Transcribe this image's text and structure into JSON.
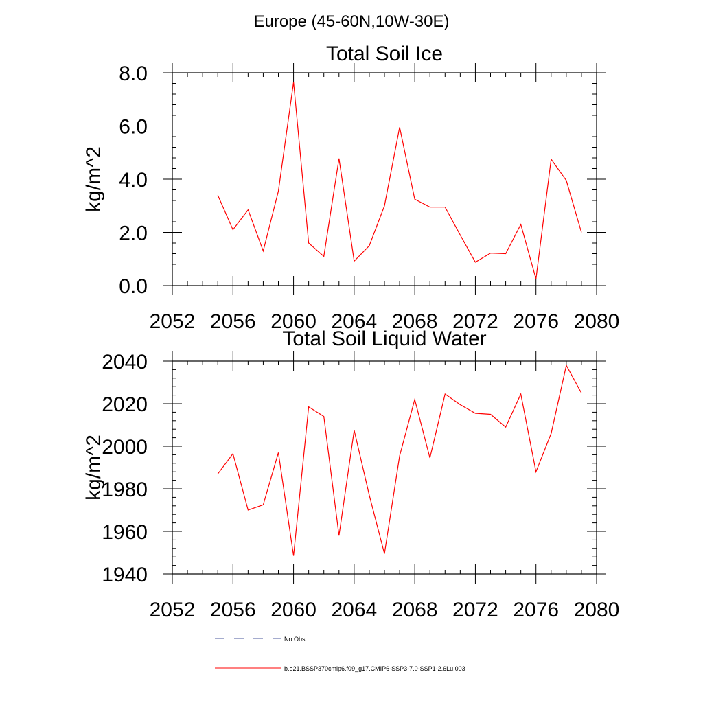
{
  "figure": {
    "suptitle": "Europe (45-60N,10W-30E)"
  },
  "chart_data": [
    {
      "type": "line",
      "title": "Total Soil Ice",
      "xlabel": "",
      "ylabel": "kg/m^2",
      "xlim": [
        2052,
        2080
      ],
      "ylim": [
        0,
        8
      ],
      "xticks": [
        "2052",
        "2056",
        "2060",
        "2064",
        "2068",
        "2072",
        "2076",
        "2080"
      ],
      "yticks": [
        "0.0",
        "2.0",
        "4.0",
        "6.0",
        "8.0"
      ],
      "line_color": "#ff0000",
      "series": [
        {
          "x": [
            2055,
            2056,
            2057,
            2058,
            2059,
            2060,
            2061,
            2062,
            2063,
            2064,
            2065,
            2066,
            2067,
            2068,
            2069,
            2070,
            2071,
            2072,
            2073,
            2074,
            2075,
            2076,
            2077,
            2078,
            2079
          ],
          "values": [
            3.4,
            2.1,
            2.85,
            1.3,
            3.55,
            7.65,
            1.6,
            1.1,
            4.78,
            0.92,
            1.5,
            3.0,
            5.95,
            3.25,
            2.95,
            2.95,
            1.9,
            0.88,
            1.22,
            1.2,
            2.3,
            0.25,
            4.75,
            3.95,
            2.0
          ]
        }
      ]
    },
    {
      "type": "line",
      "title": "Total Soil Liquid Water",
      "xlabel": "",
      "ylabel": "kg/m^2",
      "xlim": [
        2052,
        2080
      ],
      "ylim": [
        1940,
        2040
      ],
      "xticks": [
        "2052",
        "2056",
        "2060",
        "2064",
        "2068",
        "2072",
        "2076",
        "2080"
      ],
      "yticks": [
        "1940",
        "1960",
        "1980",
        "2000",
        "2020",
        "2040"
      ],
      "line_color": "#ff0000",
      "series": [
        {
          "x": [
            2055,
            2056,
            2057,
            2058,
            2059,
            2060,
            2061,
            2062,
            2063,
            2064,
            2065,
            2066,
            2067,
            2068,
            2069,
            2070,
            2071,
            2072,
            2073,
            2074,
            2075,
            2076,
            2077,
            2078,
            2079
          ],
          "values": [
            1987,
            1996.5,
            1970,
            1972.5,
            1997,
            1948.5,
            2018.5,
            2014,
            1958,
            2007.5,
            1977,
            1949.5,
            1995.5,
            2022,
            1994.5,
            2024.5,
            2019.5,
            2015.5,
            2015,
            2009,
            2024.5,
            1988,
            2006,
            2038,
            2025
          ]
        }
      ]
    }
  ],
  "legend": {
    "entries": [
      {
        "label": "No Obs",
        "color": "#4b5a9e",
        "dash": "14 14"
      },
      {
        "label": "b.e21.BSSP370cmip6.f09_g17.CMIP6-SSP3-7.0-SSP1-2.6Lu.003",
        "color": "#ff0000",
        "dash": ""
      }
    ]
  }
}
